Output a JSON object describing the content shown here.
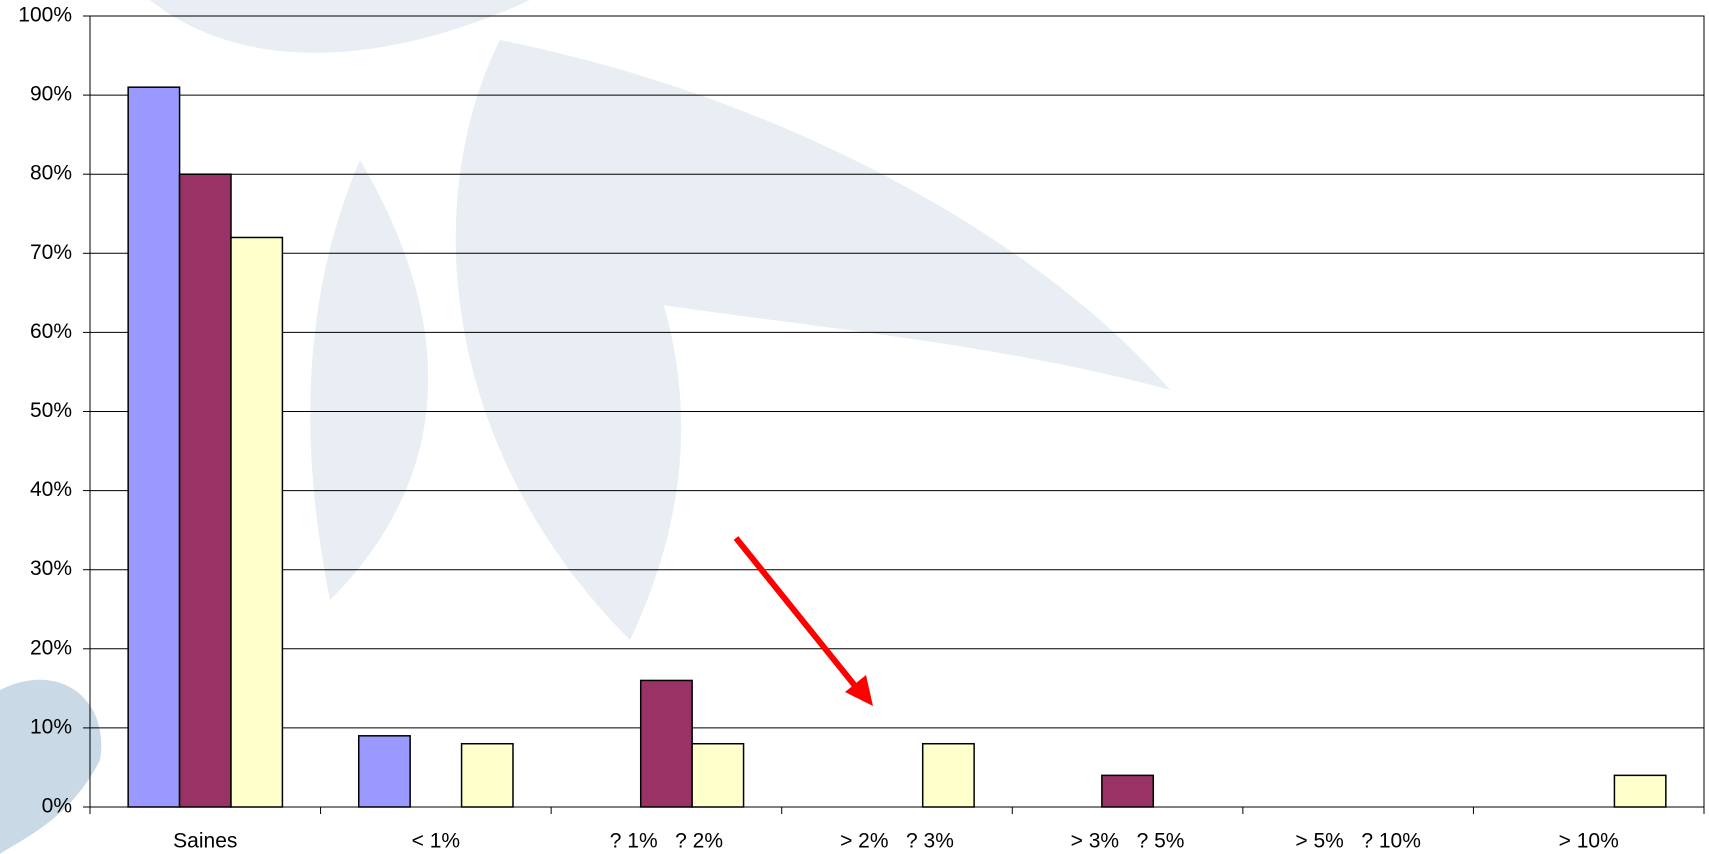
{
  "chart_data": {
    "type": "bar",
    "categories": [
      "Saines",
      "< 1%",
      "? 1%   ? 2%",
      "> 2%   ? 3%",
      "> 3%   ? 5%",
      "> 5%   ? 10%",
      "> 10%"
    ],
    "series": [
      {
        "color": "#9999ff",
        "values": [
          91,
          9,
          0,
          0,
          0,
          0,
          0
        ]
      },
      {
        "color": "#993366",
        "values": [
          80,
          0,
          16,
          0,
          4,
          0,
          0
        ]
      },
      {
        "color": "#ffffcc",
        "values": [
          72,
          8,
          8,
          8,
          0,
          0,
          4
        ]
      }
    ],
    "ylim": [
      0,
      100
    ],
    "yticks": [
      {
        "value": 0,
        "label": "0%"
      },
      {
        "value": 10,
        "label": "10%"
      },
      {
        "value": 20,
        "label": "20%"
      },
      {
        "value": 30,
        "label": "30%"
      },
      {
        "value": 40,
        "label": "40%"
      },
      {
        "value": 50,
        "label": "50%"
      },
      {
        "value": 60,
        "label": "60%"
      },
      {
        "value": 70,
        "label": "70%"
      },
      {
        "value": 80,
        "label": "80%"
      },
      {
        "value": 90,
        "label": "90%"
      },
      {
        "value": 100,
        "label": "100%"
      }
    ],
    "grid": true
  }
}
